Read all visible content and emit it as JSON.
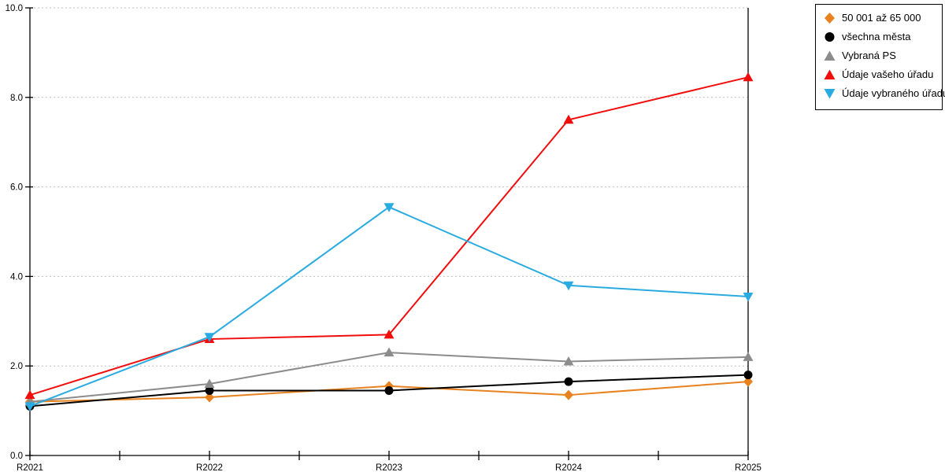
{
  "chart_data": {
    "type": "line",
    "title": "",
    "xlabel": "",
    "ylabel": "",
    "x_categories": [
      "R2021",
      "R2022",
      "R2023",
      "R2024",
      "R2025"
    ],
    "ylim": [
      0,
      10
    ],
    "y_tick_labels": [
      "0.0",
      "2.0",
      "4.0",
      "6.0",
      "8.0",
      "10.0"
    ],
    "y_tick_values": [
      0,
      2,
      4,
      6,
      8,
      10
    ],
    "grid": "horizontal dotted gridlines at 2.0 intervals, light gray",
    "axis_color": "#000000",
    "grid_color": "#BFBFBF",
    "legend_position": "outside-top-right",
    "series": [
      {
        "name": "50 001 až 65 000",
        "marker": "diamond",
        "color": "#E8821E",
        "values": [
          1.2,
          1.3,
          1.55,
          1.35,
          1.65
        ]
      },
      {
        "name": "všechna města",
        "marker": "circle",
        "color": "#000000",
        "values": [
          1.1,
          1.45,
          1.45,
          1.65,
          1.8
        ]
      },
      {
        "name": "Vybraná PS",
        "marker": "triangle-up",
        "color": "#8C8C8C",
        "values": [
          1.2,
          1.6,
          2.3,
          2.1,
          2.2
        ]
      },
      {
        "name": "Údaje vašeho úřadu",
        "marker": "triangle-up",
        "color": "#F20D0D",
        "values": [
          1.35,
          2.6,
          2.7,
          7.5,
          8.45
        ]
      },
      {
        "name": "Údaje vybraného úřadu",
        "marker": "triangle-down",
        "color": "#29ABE2",
        "values": [
          1.1,
          2.65,
          5.55,
          3.8,
          3.55
        ]
      }
    ]
  }
}
